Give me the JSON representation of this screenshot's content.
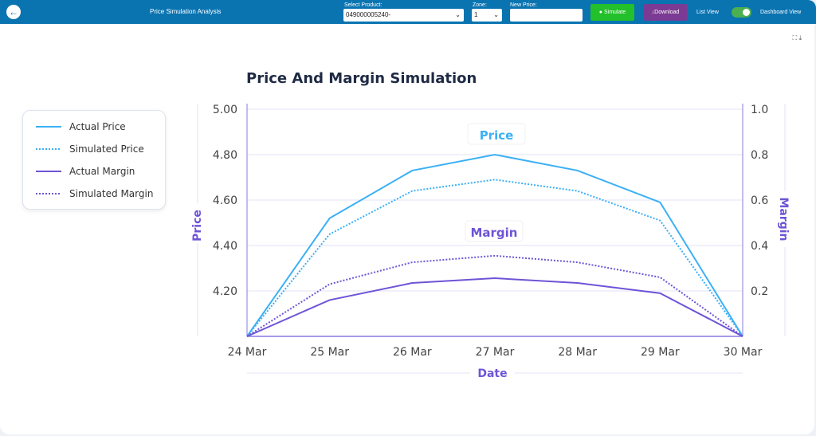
{
  "header": {
    "title": "Price Simulation Analysis",
    "product_label": "Select Product:",
    "product_value": "049000005240-",
    "zone_label": "Zone:",
    "zone_value": "1",
    "new_price_label": "New Price:",
    "new_price_value": "",
    "simulate": "Simulate",
    "download": "Download",
    "list_view": "List View",
    "dashboard_view": "Dashboard View",
    "toggle_on": true
  },
  "colors": {
    "header": "#0a74b1",
    "price": "#3bb0f5",
    "margin": "#6e54d6",
    "simulate": "#22c02a",
    "download": "#7b3a93"
  },
  "chart_data": {
    "type": "line",
    "title": "Price And Margin Simulation",
    "xlabel": "Date",
    "ylabel": "Price",
    "y2label": "Margin",
    "categories": [
      "24 Mar",
      "25 Mar",
      "26 Mar",
      "27 Mar",
      "28 Mar",
      "29 Mar",
      "30 Mar"
    ],
    "ylim": [
      4.0,
      5.0
    ],
    "yticks": [
      "4.20",
      "4.40",
      "4.60",
      "4.80",
      "5.00"
    ],
    "y2lim": [
      0,
      1.0
    ],
    "y2ticks": [
      "0.2",
      "0.4",
      "0.6",
      "0.8",
      "1.0"
    ],
    "grid": true,
    "legend_position": "left",
    "annotations": [
      "Price",
      "Margin"
    ],
    "series": [
      {
        "name": "Actual Price",
        "axis": "left",
        "style": "solid",
        "values": [
          4.0,
          4.52,
          4.73,
          4.8,
          4.73,
          4.59,
          4.0
        ]
      },
      {
        "name": "Simulated Price",
        "axis": "left",
        "style": "dotted",
        "values": [
          4.0,
          4.45,
          4.64,
          4.69,
          4.64,
          4.51,
          4.0
        ]
      },
      {
        "name": "Actual Margin",
        "axis": "right",
        "style": "solid",
        "values": [
          0,
          0.16,
          0.235,
          0.256,
          0.235,
          0.19,
          0
        ]
      },
      {
        "name": "Simulated Margin",
        "axis": "right",
        "style": "dotted",
        "values": [
          0,
          0.23,
          0.326,
          0.355,
          0.326,
          0.26,
          0
        ]
      }
    ]
  }
}
